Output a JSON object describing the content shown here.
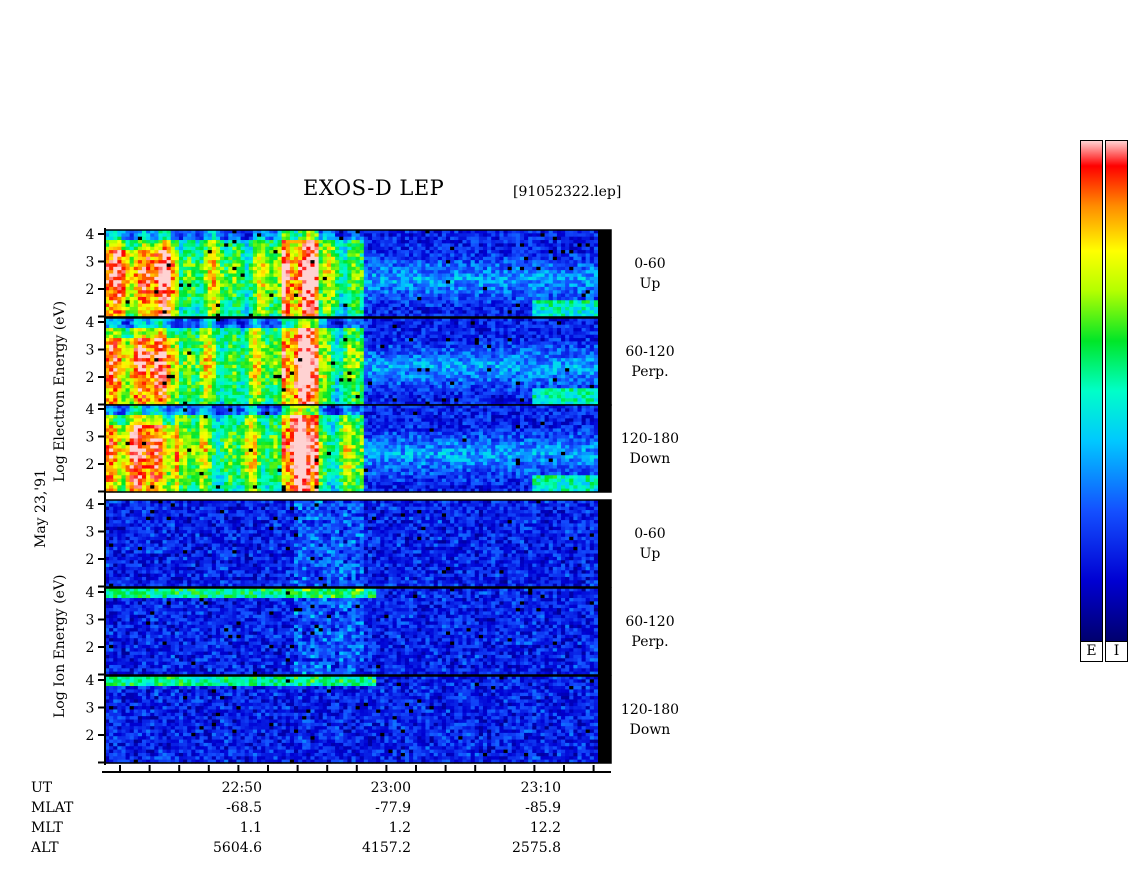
{
  "header": {
    "title": "EXOS-D LEP",
    "file": "[91052322.lep]"
  },
  "side_labels": {
    "date": "May 23,'91",
    "electron": "Log  Electron  Energy (eV)",
    "ion": "Log   Ion   Energy (eV)"
  },
  "chart_data": {
    "type": "heatmap",
    "title": "EXOS-D LEP",
    "x_ticks": [
      "22:50",
      "23:00",
      "23:10"
    ],
    "y_ticks": [
      "1",
      "2",
      "3",
      "4"
    ],
    "ylabel_electron": "Log Electron Energy (eV)",
    "ylabel_ion": "Log Ion Energy (eV)",
    "panels": [
      {
        "group": "electron",
        "pitch": "0-60",
        "dir": "Up"
      },
      {
        "group": "electron",
        "pitch": "60-120",
        "dir": "Perp."
      },
      {
        "group": "electron",
        "pitch": "120-180",
        "dir": "Down"
      },
      {
        "group": "ion",
        "pitch": "0-60",
        "dir": "Up"
      },
      {
        "group": "ion",
        "pitch": "60-120",
        "dir": "Perp."
      },
      {
        "group": "ion",
        "pitch": "120-180",
        "dir": "Down"
      }
    ],
    "colorbar_labels": [
      "E",
      "I"
    ]
  },
  "orbit_info": {
    "rows": [
      {
        "label": "UT",
        "values": [
          "22:50",
          "23:00",
          "23:10"
        ]
      },
      {
        "label": "MLAT",
        "values": [
          "-68.5",
          "-77.9",
          "-85.9"
        ]
      },
      {
        "label": "MLT",
        "values": [
          "1.1",
          "1.2",
          "12.2"
        ]
      },
      {
        "label": "ALT",
        "values": [
          "5604.6",
          "4157.2",
          "2575.8"
        ]
      }
    ]
  },
  "colors": {
    "background": "#ffffff",
    "axis": "#000000"
  }
}
